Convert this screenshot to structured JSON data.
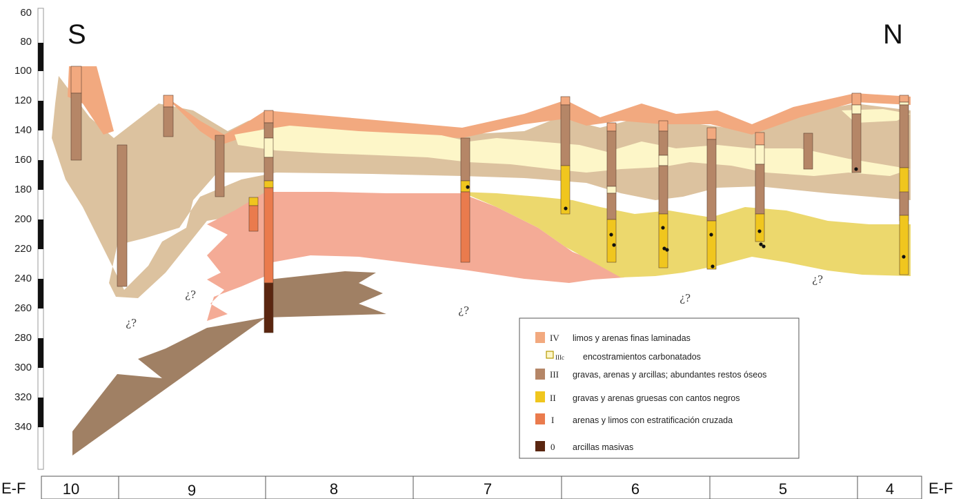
{
  "depth_axis": {
    "ticks": [
      "60",
      "80",
      "100",
      "120",
      "140",
      "160",
      "180",
      "200",
      "220",
      "240",
      "260",
      "280",
      "300",
      "320",
      "340"
    ]
  },
  "orientation": {
    "left": "S",
    "right": "N"
  },
  "uncertain_mark": "¿?",
  "units": {
    "IV": {
      "color": "#f2a97f"
    },
    "IIIc": {
      "color": "#fdf6c8"
    },
    "III": {
      "color": "#b58667"
    },
    "II": {
      "color": "#f0c61e"
    },
    "I": {
      "color": "#ea7b4d"
    },
    "0": {
      "color": "#5a2610"
    },
    "matrix_III": {
      "color": "#dcc29f"
    },
    "matrix_I": {
      "color": "#f4ab96"
    },
    "matrix_II": {
      "color": "#ecd86d"
    },
    "matrix_0": {
      "color": "#a08064"
    }
  },
  "legend": [
    {
      "code": "IV",
      "label": "limos y arenas finas laminadas"
    },
    {
      "code": "IIIc",
      "label": "encostramientos carbonatados"
    },
    {
      "code": "III",
      "label": "gravas, arenas y arcillas; abundantes restos óseos"
    },
    {
      "code": "II",
      "label": "gravas y arenas gruesas con cantos negros"
    },
    {
      "code": "I",
      "label": "arenas y limos con estratificación cruzada"
    },
    {
      "code": "0",
      "label": "arcillas masivas"
    }
  ],
  "section_axis": {
    "end_label": "E-F",
    "sections": [
      "10",
      "9",
      "8",
      "7",
      "6",
      "5",
      "4"
    ]
  }
}
